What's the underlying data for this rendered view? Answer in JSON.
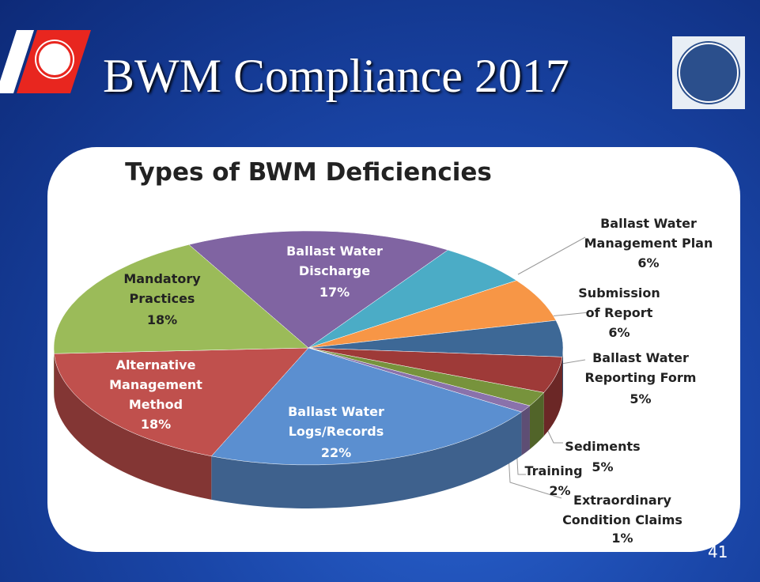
{
  "slide_title": "BWM Compliance 2017",
  "slide_number": "41",
  "chart_data": {
    "type": "pie",
    "title": "Types of BWM Deficiencies",
    "categories": [
      "Ballast Water Discharge",
      "Ballast Water Management Plan",
      "Submission of Report",
      "Ballast Water Reporting Form",
      "Sediments",
      "Training",
      "Extraordinary Condition Claims",
      "Ballast Water Logs/Records",
      "Alternative Management Method",
      "Mandatory Practices"
    ],
    "values": [
      17,
      6,
      6,
      5,
      5,
      2,
      1,
      22,
      18,
      18
    ],
    "value_labels": [
      "17%",
      "6%",
      "6%",
      "5%",
      "5%",
      "2%",
      "1%",
      "22%",
      "18%",
      "18%"
    ],
    "colors": [
      "#8064a2",
      "#4bacc6",
      "#f79646",
      "#3d6896",
      "#9e3a38",
      "#77933c",
      "#8a72ab",
      "#5b8fd0",
      "#c0504d",
      "#9bbb59"
    ]
  }
}
